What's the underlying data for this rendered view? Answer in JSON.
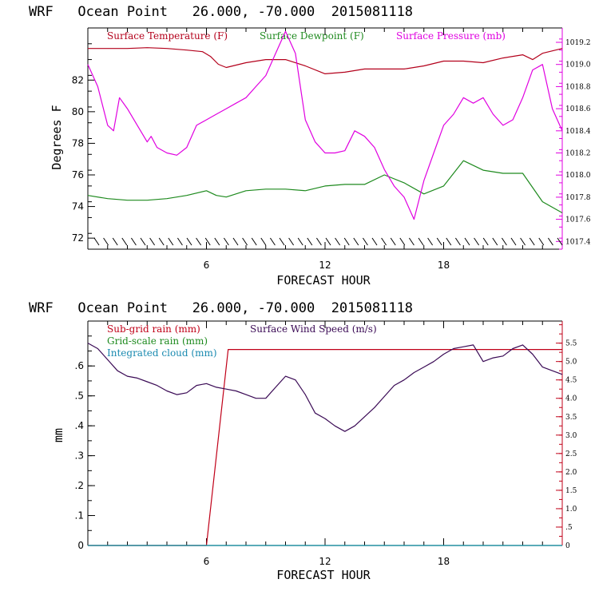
{
  "colors": {
    "temperature": "#b3001b",
    "dewpoint": "#1e8a1e",
    "pressure": "#e000e0",
    "subgrid_rain": "#c00018",
    "gridscale_rain": "#1e8a1e",
    "cloud": "#1a8ab0",
    "wind": "#3a0a55",
    "axis_left": "#000000"
  },
  "chart_data": [
    {
      "type": "line",
      "title": "WRF   Ocean Point   26.000, -70.000  2015081118",
      "xlabel": "FORECAST HOUR",
      "ylabel": "Degrees F",
      "xlim": [
        0,
        24
      ],
      "ylim": [
        71.3,
        85.3
      ],
      "x_ticks": [
        "6",
        "12",
        "18"
      ],
      "y_ticks": [
        "72",
        "74",
        "76",
        "78",
        "80",
        "82"
      ],
      "y2_ticks": [
        "1017.4",
        "1017.6",
        "1017.8",
        "1018.0",
        "1018.2",
        "1018.4",
        "1018.6",
        "1018.8",
        "1019.0",
        "1019.2"
      ],
      "y2lim": [
        1017.33,
        1019.33
      ],
      "legend": [
        "Surface Temperature (F)",
        "Surface Dewpoint (F)",
        "Surface Pressure (mb)"
      ],
      "series": [
        {
          "name": "Surface Temperature (F)",
          "axis": "left",
          "x": [
            0,
            1,
            2,
            3,
            4,
            5,
            5.8,
            6.2,
            6.6,
            7,
            8,
            9,
            10,
            11,
            12,
            13,
            14,
            15,
            16,
            17,
            18,
            19,
            20,
            21,
            22,
            22.5,
            23,
            24
          ],
          "y": [
            84.0,
            84.0,
            84.0,
            84.05,
            84.0,
            83.9,
            83.8,
            83.5,
            83.0,
            82.8,
            83.1,
            83.3,
            83.3,
            82.9,
            82.4,
            82.5,
            82.7,
            82.7,
            82.7,
            82.9,
            83.2,
            83.2,
            83.1,
            83.4,
            83.6,
            83.3,
            83.7,
            84.0
          ]
        },
        {
          "name": "Surface Dewpoint (F)",
          "axis": "left",
          "x": [
            0,
            1,
            2,
            3,
            4,
            5,
            6,
            6.5,
            7,
            8,
            9,
            10,
            11,
            12,
            13,
            14,
            15,
            16,
            17,
            18,
            19,
            20,
            21,
            22,
            23,
            24
          ],
          "y": [
            74.7,
            74.5,
            74.4,
            74.4,
            74.5,
            74.7,
            75.0,
            74.7,
            74.6,
            75.0,
            75.1,
            75.1,
            75.0,
            75.3,
            75.4,
            75.4,
            76.0,
            75.5,
            74.8,
            75.3,
            76.9,
            76.3,
            76.1,
            76.1,
            74.3,
            73.6
          ]
        },
        {
          "name": "Surface Pressure (mb)",
          "axis": "right",
          "x": [
            0,
            0.5,
            1,
            1.3,
            1.6,
            2,
            2.5,
            3,
            3.2,
            3.5,
            4,
            4.5,
            5,
            5.5,
            6,
            6.5,
            7,
            7.5,
            8,
            8.5,
            9,
            9.5,
            10,
            10.5,
            11,
            11.5,
            12,
            12.5,
            13,
            13.5,
            14,
            14.5,
            15,
            15.5,
            16,
            16.5,
            17,
            17.5,
            18,
            18.5,
            19,
            19.5,
            20,
            20.5,
            21,
            21.5,
            22,
            22.5,
            23,
            23.5,
            24
          ],
          "y": [
            1019.0,
            1018.8,
            1018.45,
            1018.4,
            1018.7,
            1018.6,
            1018.45,
            1018.3,
            1018.35,
            1018.25,
            1018.2,
            1018.18,
            1018.25,
            1018.45,
            1018.5,
            1018.55,
            1018.6,
            1018.65,
            1018.7,
            1018.8,
            1018.9,
            1019.1,
            1019.3,
            1019.1,
            1018.5,
            1018.3,
            1018.2,
            1018.2,
            1018.22,
            1018.4,
            1018.35,
            1018.25,
            1018.05,
            1017.9,
            1017.8,
            1017.6,
            1017.95,
            1018.2,
            1018.45,
            1018.55,
            1018.7,
            1018.65,
            1018.7,
            1018.55,
            1018.45,
            1018.5,
            1018.7,
            1018.95,
            1019.0,
            1018.6,
            1018.4
          ]
        }
      ]
    },
    {
      "type": "line",
      "title": "WRF   Ocean Point   26.000, -70.000  2015081118",
      "xlabel": "FORECAST HOUR",
      "ylabel": "mm",
      "xlim": [
        0,
        24
      ],
      "ylim": [
        0,
        0.75
      ],
      "x_ticks": [
        "6",
        "12",
        "18"
      ],
      "y_ticks": [
        "0",
        ".1",
        ".2",
        ".3",
        ".4",
        ".5",
        ".6"
      ],
      "y2_ticks": [
        "0",
        ".5",
        "1.0",
        "1.5",
        "2.0",
        "2.5",
        "3.0",
        "3.5",
        "4.0",
        "4.5",
        "5.0",
        "5.5"
      ],
      "y2lim": [
        0,
        6.1
      ],
      "legend": [
        "Sub-grid rain (mm)",
        "Grid-scale rain (mm)",
        "Integrated cloud (mm)",
        "Surface Wind Speed (m/s)"
      ],
      "series": [
        {
          "name": "Sub-grid rain (mm)",
          "axis": "left",
          "x": [
            0,
            5.9,
            6.0,
            7.1,
            24
          ],
          "y": [
            0,
            0,
            0.0,
            0.655,
            0.655
          ]
        },
        {
          "name": "Grid-scale rain (mm)",
          "axis": "left",
          "x": [
            0,
            24
          ],
          "y": [
            0,
            0
          ]
        },
        {
          "name": "Integrated cloud (mm)",
          "axis": "left",
          "x": [
            0,
            24
          ],
          "y": [
            0,
            0
          ]
        },
        {
          "name": "Surface Wind Speed (m/s)",
          "axis": "right",
          "x": [
            0,
            0.5,
            1,
            1.5,
            2,
            2.5,
            3,
            3.5,
            4,
            4.5,
            5,
            5.5,
            6,
            6.5,
            7,
            7.5,
            8,
            8.5,
            9,
            9.5,
            10,
            10.5,
            11,
            11.5,
            12,
            12.5,
            13,
            13.5,
            14,
            14.5,
            15,
            15.5,
            16,
            16.5,
            17,
            17.5,
            18,
            18.5,
            19,
            19.5,
            20,
            20.5,
            21,
            21.5,
            22,
            22.5,
            23,
            23.5,
            24
          ],
          "y": [
            5.5,
            5.35,
            5.05,
            4.75,
            4.6,
            4.55,
            4.45,
            4.35,
            4.2,
            4.1,
            4.15,
            4.35,
            4.4,
            4.3,
            4.25,
            4.2,
            4.1,
            4.0,
            4.0,
            4.3,
            4.6,
            4.5,
            4.1,
            3.6,
            3.45,
            3.25,
            3.1,
            3.25,
            3.5,
            3.75,
            4.05,
            4.35,
            4.5,
            4.7,
            4.85,
            5.0,
            5.2,
            5.35,
            5.4,
            5.45,
            5.0,
            5.1,
            5.15,
            5.35,
            5.45,
            5.2,
            4.85,
            4.75,
            4.65
          ]
        }
      ]
    }
  ]
}
